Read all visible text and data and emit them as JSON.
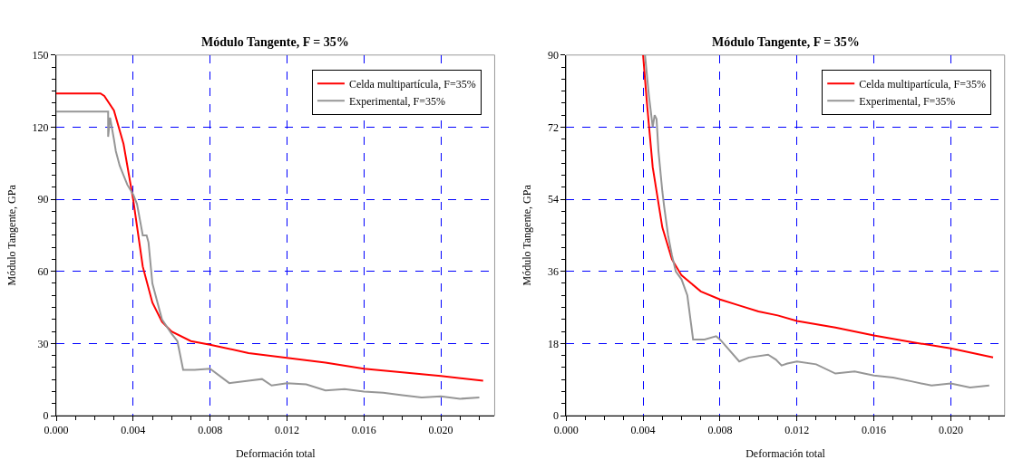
{
  "chart_data": [
    {
      "type": "line",
      "title": "Módulo Tangente, F = 35%",
      "xlabel": "Deformación total",
      "ylabel": "Módulo Tangente, GPa",
      "xlim": [
        0,
        0.0228
      ],
      "xticks": [
        {
          "value": 0,
          "label": "0.000"
        },
        {
          "value": 0.004,
          "label": "0.004"
        },
        {
          "value": 0.008,
          "label": "0.008"
        },
        {
          "value": 0.012,
          "label": "0.012"
        },
        {
          "value": 0.016,
          "label": "0.016"
        },
        {
          "value": 0.02,
          "label": "0.020"
        }
      ],
      "ylim": [
        0,
        150
      ],
      "yticks": [
        0,
        30,
        60,
        90,
        120,
        150
      ],
      "grid": true,
      "legend": "top right",
      "line_style": "solid",
      "marker": "none",
      "series": [
        {
          "name": "Celda multipartícula, F=35%",
          "color": "#ff0000",
          "x": [
            0,
            0.0023,
            0.0025,
            0.003,
            0.0035,
            0.004,
            0.0045,
            0.005,
            0.0055,
            0.006,
            0.007,
            0.008,
            0.01,
            0.012,
            0.014,
            0.016,
            0.018,
            0.02,
            0.0222
          ],
          "values": [
            134,
            134,
            133,
            127,
            113,
            90,
            62,
            47,
            39,
            35,
            31,
            29.5,
            26,
            24,
            22,
            19.5,
            18,
            16.5,
            14.5
          ]
        },
        {
          "name": "Experimental, F=35%",
          "color": "#969696",
          "x": [
            0,
            0.0027,
            0.0027,
            0.0028,
            0.003,
            0.0031,
            0.0033,
            0.0035,
            0.0037,
            0.004,
            0.0042,
            0.0045,
            0.0047,
            0.0048,
            0.005,
            0.0055,
            0.006,
            0.0063,
            0.0066,
            0.0072,
            0.008,
            0.009,
            0.01,
            0.0107,
            0.0112,
            0.012,
            0.013,
            0.014,
            0.015,
            0.016,
            0.017,
            0.018,
            0.019,
            0.02,
            0.021,
            0.022
          ],
          "values": [
            126.5,
            126.5,
            116,
            124,
            115,
            110,
            104,
            100,
            96,
            92,
            88,
            75,
            75,
            72,
            55,
            40,
            34,
            31,
            19,
            19,
            19.5,
            13.5,
            14.5,
            15.2,
            12.5,
            13.5,
            13,
            10.5,
            11,
            10,
            9.5,
            8.5,
            7.5,
            8,
            7,
            7.5
          ]
        }
      ]
    },
    {
      "type": "line",
      "title": "Módulo Tangente, F = 35%",
      "xlabel": "Deformación total",
      "ylabel": "Módulo Tangente, GPa",
      "xlim": [
        0,
        0.0228
      ],
      "xticks": [
        {
          "value": 0,
          "label": "0.000"
        },
        {
          "value": 0.004,
          "label": "0.004"
        },
        {
          "value": 0.008,
          "label": "0.008"
        },
        {
          "value": 0.012,
          "label": "0.012"
        },
        {
          "value": 0.016,
          "label": "0.016"
        },
        {
          "value": 0.02,
          "label": "0.020"
        }
      ],
      "ylim": [
        0,
        90
      ],
      "yticks": [
        0,
        18,
        36,
        54,
        72,
        90
      ],
      "grid": true,
      "legend": "top right",
      "line_style": "solid",
      "marker": "none",
      "series": [
        {
          "name": "Celda multipartícula, F=35%",
          "color": "#ff0000",
          "x": [
            0.004,
            0.0042,
            0.0045,
            0.005,
            0.0055,
            0.006,
            0.007,
            0.008,
            0.009,
            0.01,
            0.011,
            0.012,
            0.014,
            0.016,
            0.018,
            0.02,
            0.0222
          ],
          "values": [
            90,
            78,
            62,
            47,
            39,
            35,
            31,
            29,
            27.5,
            26,
            25,
            23.6,
            22,
            20,
            18.3,
            16.8,
            14.5
          ]
        },
        {
          "name": "Experimental, F=35%",
          "color": "#969696",
          "x": [
            0.0041,
            0.0043,
            0.0045,
            0.0046,
            0.0047,
            0.0048,
            0.005,
            0.0051,
            0.0053,
            0.0055,
            0.0057,
            0.006,
            0.0063,
            0.0066,
            0.0072,
            0.0078,
            0.008,
            0.009,
            0.0095,
            0.0105,
            0.0109,
            0.0112,
            0.0115,
            0.012,
            0.013,
            0.014,
            0.015,
            0.016,
            0.017,
            0.018,
            0.019,
            0.02,
            0.021,
            0.022
          ],
          "values": [
            90,
            80,
            72,
            75,
            74,
            66,
            56,
            52,
            45,
            40,
            36,
            34,
            30,
            19,
            19,
            19.8,
            19,
            13.5,
            14.5,
            15.2,
            14,
            12.5,
            13,
            13.5,
            12.8,
            10.5,
            11,
            10,
            9.5,
            8.5,
            7.5,
            8,
            7,
            7.5
          ]
        }
      ]
    }
  ]
}
